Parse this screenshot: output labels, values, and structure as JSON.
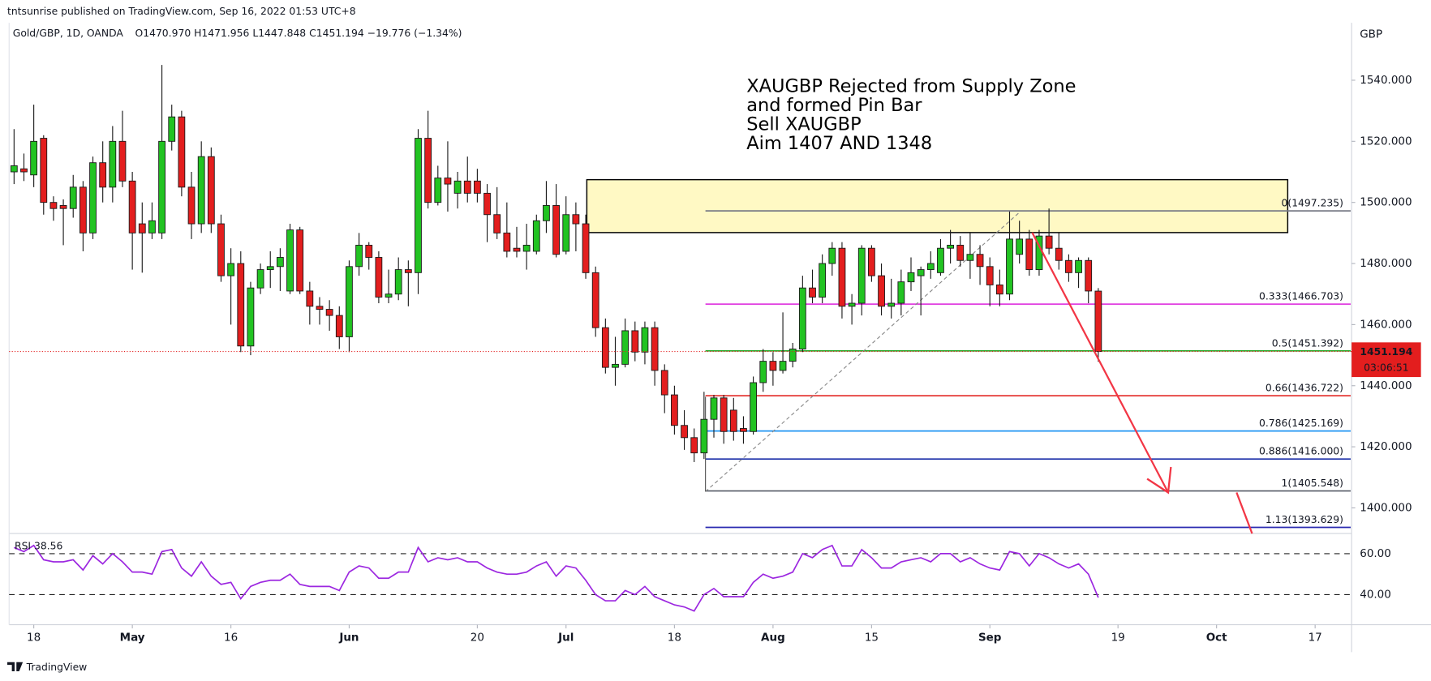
{
  "chart_data": {
    "type": "candlestick",
    "publisher_line": "tntsunrise published on TradingView.com, Sep 16, 2022 01:53 UTC+8",
    "symbol": "Gold/GBP, 1D, OANDA",
    "ohlc_legend": "O1470.970 H1471.956 L1447.848 C1451.194 −19.776 (−1.34%)",
    "currency": "GBP",
    "annotation": [
      "XAUGBP Rejected from Supply Zone",
      "and formed Pin Bar",
      "Sell XAUGBP",
      "Aim 1407 AND 1348"
    ],
    "last_price_label": "1451.194",
    "countdown": "03:06:51",
    "footer": "TradingView",
    "up_color": "#22c322",
    "down_color": "#e31e1e",
    "wick_color": "#1a1a1a",
    "grid": false,
    "x": [
      -2,
      -1,
      0,
      1,
      2,
      3,
      4,
      5,
      6,
      7,
      8,
      9,
      10,
      11,
      12,
      13,
      14,
      15,
      16,
      17,
      18,
      19,
      20,
      21,
      22,
      23,
      24,
      25,
      26,
      27,
      28,
      29,
      30,
      31,
      32,
      33,
      34,
      35,
      36,
      37,
      38,
      39,
      40,
      41,
      42,
      43,
      44,
      45,
      46,
      47,
      48,
      49,
      50,
      51,
      52,
      53,
      54,
      55,
      56,
      57,
      58,
      59,
      60,
      61,
      62,
      63,
      64,
      65,
      66,
      67,
      68,
      69,
      70,
      71,
      72,
      73,
      74,
      75,
      76,
      77,
      78,
      79,
      80,
      81,
      82,
      83,
      84,
      85,
      86,
      87,
      88,
      89,
      90,
      91,
      92,
      93,
      94,
      95,
      96,
      97,
      98,
      99,
      100,
      101,
      102,
      103,
      104,
      105,
      106,
      107,
      108
    ],
    "open": [
      1510,
      1511,
      1509,
      1521,
      1500,
      1499,
      1498,
      1505,
      1490,
      1513,
      1505,
      1520,
      1507,
      1493,
      1490,
      1490,
      1520,
      1528,
      1505,
      1493,
      1515,
      1493,
      1476,
      1480,
      1453,
      1472,
      1478,
      1479,
      1471,
      1491,
      1471,
      1466,
      1465,
      1463,
      1456,
      1479,
      1486,
      1482,
      1469,
      1470,
      1478,
      1477,
      1521,
      1500,
      1508,
      1503,
      1507,
      1507,
      1503,
      1496,
      1490,
      1485,
      1484,
      1484,
      1494,
      1499,
      1484,
      1496,
      1493,
      1477,
      1459,
      1446,
      1447,
      1458,
      1451,
      1459,
      1445,
      1437,
      1427,
      1423,
      1418,
      1429,
      1436,
      1432,
      1426,
      1425,
      1441,
      1448,
      1445,
      1448,
      1452,
      1472,
      1469,
      1480,
      1485,
      1466,
      1467,
      1485,
      1476,
      1466,
      1467,
      1474,
      1476,
      1478,
      1477,
      1485,
      1486,
      1481,
      1483,
      1479,
      1473,
      1470,
      1483,
      1488,
      1478,
      1489,
      1485,
      1481,
      1477,
      1481,
      1470.97
    ],
    "high": [
      1524,
      1516,
      1532,
      1522,
      1502,
      1501,
      1509,
      1507,
      1515,
      1520,
      1525,
      1530,
      1510,
      1500,
      1500,
      1545,
      1532,
      1530,
      1510,
      1520,
      1518,
      1496,
      1485,
      1484,
      1474,
      1480,
      1484,
      1485,
      1493,
      1492,
      1474,
      1469,
      1468,
      1466,
      1481,
      1490,
      1487,
      1484,
      1478,
      1482,
      1481,
      1524,
      1530,
      1512,
      1520,
      1510,
      1515,
      1511,
      1506,
      1505,
      1500,
      1492,
      1493,
      1496,
      1507,
      1506,
      1502,
      1500,
      1496,
      1479,
      1462,
      1456,
      1462,
      1461,
      1461,
      1461,
      1447,
      1440,
      1432,
      1426,
      1438,
      1437,
      1437,
      1436,
      1430,
      1443,
      1452,
      1451,
      1464,
      1454,
      1476,
      1478,
      1483,
      1487,
      1487,
      1470,
      1486,
      1486,
      1480,
      1475,
      1478,
      1482,
      1479,
      1484,
      1488,
      1491,
      1489,
      1490,
      1486,
      1482,
      1478,
      1497,
      1494,
      1491,
      1491,
      1498,
      1490,
      1483,
      1482,
      1482,
      1471.956
    ],
    "low": [
      1506,
      1507,
      1505,
      1496,
      1494,
      1486,
      1495,
      1484,
      1488,
      1500,
      1500,
      1505,
      1478,
      1477,
      1488,
      1488,
      1517,
      1502,
      1488,
      1490,
      1490,
      1474,
      1460,
      1451,
      1450,
      1470,
      1472,
      1471,
      1470,
      1470,
      1460,
      1460,
      1458,
      1452,
      1451,
      1476,
      1478,
      1467,
      1467,
      1468,
      1466,
      1470,
      1498,
      1499,
      1497,
      1498,
      1500,
      1500,
      1487,
      1488,
      1482,
      1482,
      1478,
      1483,
      1490,
      1482,
      1483,
      1484,
      1475,
      1456,
      1444,
      1440,
      1446,
      1448,
      1447,
      1440,
      1431,
      1424,
      1419,
      1415,
      1416,
      1423,
      1421,
      1422,
      1421,
      1424,
      1438,
      1440,
      1444,
      1446,
      1451,
      1467,
      1467,
      1476,
      1462,
      1460,
      1463,
      1474,
      1463,
      1462,
      1463,
      1471,
      1463,
      1475,
      1476,
      1480,
      1479,
      1475,
      1473,
      1466,
      1466,
      1468,
      1480,
      1476,
      1476,
      1483,
      1478,
      1474,
      1472,
      1467,
      1447.848
    ],
    "close": [
      1512,
      1510,
      1520,
      1500,
      1498,
      1498,
      1505,
      1490,
      1513,
      1505,
      1520,
      1507,
      1490,
      1490,
      1494,
      1520,
      1528,
      1505,
      1493,
      1515,
      1493,
      1476,
      1480,
      1453,
      1472,
      1478,
      1479,
      1482,
      1491,
      1471,
      1466,
      1465,
      1463,
      1456,
      1479,
      1486,
      1482,
      1469,
      1470,
      1478,
      1477,
      1521,
      1500,
      1508,
      1506,
      1507,
      1503,
      1503,
      1496,
      1490,
      1484,
      1484,
      1486,
      1494,
      1499,
      1483,
      1496,
      1493,
      1477,
      1459,
      1446,
      1447,
      1458,
      1451,
      1459,
      1445,
      1437,
      1427,
      1423,
      1418,
      1429,
      1436,
      1425,
      1425,
      1425,
      1441,
      1448,
      1445,
      1448,
      1452,
      1472,
      1469,
      1480,
      1485,
      1466,
      1467,
      1485,
      1476,
      1466,
      1467,
      1474,
      1477,
      1478,
      1480,
      1485,
      1486,
      1481,
      1483,
      1479,
      1473,
      1470,
      1488,
      1488,
      1478,
      1489,
      1485,
      1481,
      1477,
      1481,
      1471,
      1451.194
    ],
    "xlim": [
      -2.5,
      133.7
    ],
    "ylim": [
      1391.6,
      1558.8
    ],
    "yticks": [
      {
        "value": 1400,
        "label": "1400.000"
      },
      {
        "value": 1420,
        "label": "1420.000"
      },
      {
        "value": 1440,
        "label": "1440.000"
      },
      {
        "value": 1460,
        "label": "1460.000"
      },
      {
        "value": 1480,
        "label": "1480.000"
      },
      {
        "value": 1500,
        "label": "1500.000"
      },
      {
        "value": 1520,
        "label": "1520.000"
      },
      {
        "value": 1540,
        "label": "1540.000"
      }
    ],
    "xticks": [
      {
        "value": 0,
        "label": "18"
      },
      {
        "value": 10,
        "label": "May"
      },
      {
        "value": 20,
        "label": "16"
      },
      {
        "value": 32,
        "label": "Jun"
      },
      {
        "value": 45,
        "label": "20"
      },
      {
        "value": 54,
        "label": "Jul"
      },
      {
        "value": 65,
        "label": "18"
      },
      {
        "value": 75,
        "label": "Aug"
      },
      {
        "value": 85,
        "label": "15"
      },
      {
        "value": 97,
        "label": "Sep"
      },
      {
        "value": 110,
        "label": "19"
      },
      {
        "value": 120,
        "label": "Oct"
      },
      {
        "value": 130,
        "label": "17"
      }
    ],
    "fib_levels": [
      {
        "label": "0(1497.235)",
        "value": 1497.235,
        "color": "#787b86"
      },
      {
        "label": "0.333(1466.703)",
        "value": 1466.703,
        "color": "#e040e0"
      },
      {
        "label": "0.5(1451.392)",
        "value": 1451.392,
        "color": "#26a626"
      },
      {
        "label": "0.66(1436.722)",
        "value": 1436.722,
        "color": "#e53935"
      },
      {
        "label": "0.786(1425.169)",
        "value": 1425.169,
        "color": "#2196f3"
      },
      {
        "label": "0.886(1416.000)",
        "value": 1416.0,
        "color": "#1a2ea8"
      },
      {
        "label": "1(1405.548)",
        "value": 1405.548,
        "color": "#555a66"
      },
      {
        "label": "1.13(1393.629)",
        "value": 1393.629,
        "color": "#2a2ab0"
      }
    ],
    "rsi": {
      "name": "RSI 38.56",
      "color": "#9c27e0",
      "values": [
        63,
        61,
        64,
        57,
        56,
        56,
        57,
        52,
        59,
        55,
        60,
        56,
        51,
        51,
        50,
        61,
        62,
        53,
        49,
        56,
        49,
        45,
        46,
        38,
        44,
        46,
        47,
        47,
        50,
        45,
        44,
        44,
        44,
        42,
        51,
        54,
        53,
        48,
        48,
        51,
        51,
        63,
        56,
        58,
        57,
        58,
        56,
        56,
        53,
        51,
        50,
        50,
        51,
        54,
        56,
        49,
        54,
        53,
        47,
        40,
        37,
        37,
        42,
        40,
        44,
        39,
        37,
        35,
        34,
        32,
        40,
        43,
        39,
        39,
        39,
        46,
        50,
        48,
        49,
        51,
        60,
        58,
        62,
        64,
        54,
        54,
        62,
        58,
        53,
        53,
        56,
        57,
        58,
        56,
        60,
        60,
        56,
        58,
        55,
        53,
        52,
        61,
        60,
        54,
        60,
        58,
        55,
        53,
        55,
        50,
        38.56
      ],
      "ylim": [
        25.3,
        69.8
      ],
      "yticks": [
        {
          "value": 40,
          "label": "40.00"
        },
        {
          "value": 60,
          "label": "60.00"
        }
      ]
    }
  }
}
